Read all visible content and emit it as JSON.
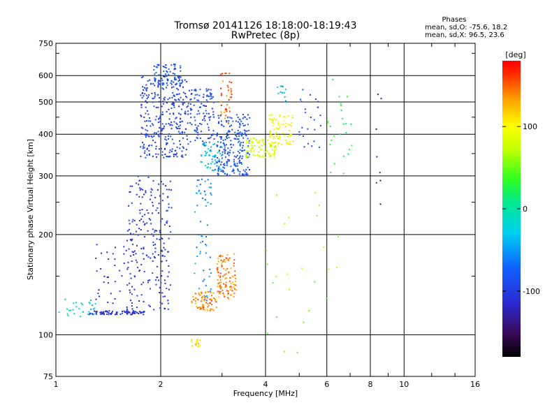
{
  "chart_data": {
    "type": "scatter",
    "title": "Tromsø 20141126 18:18:00-18:19:43",
    "subtitle": "RwPretec (8p)",
    "xlabel": "Frequency [MHz]",
    "ylabel": "Stationary phase Virtual Height [km]",
    "x_scale": "log",
    "y_scale": "log",
    "xlim": [
      1,
      16
    ],
    "ylim": [
      75,
      750
    ],
    "x_ticks": [
      "1",
      "2",
      "4",
      "6",
      "8",
      "10",
      "16"
    ],
    "x_tick_values": [
      1,
      2,
      4,
      6,
      8,
      10,
      16
    ],
    "y_ticks": [
      "75",
      "100",
      "200",
      "300",
      "400",
      "500",
      "600",
      "750"
    ],
    "y_tick_values": [
      75,
      100,
      200,
      300,
      400,
      500,
      600,
      750
    ],
    "grid": true,
    "stats": {
      "heading": "Phases",
      "line_o": "mean, sd,O: -75.6, 18.2",
      "line_x": "mean, sd,X:  96.5, 23.6"
    },
    "colorbar": {
      "label": "[deg]",
      "range": [
        -180,
        180
      ],
      "ticks": [
        "100",
        "0",
        "-100"
      ],
      "tick_values": [
        100,
        0,
        -100
      ],
      "colormap": "rainbow (black-purple-blue-cyan-green-yellow-orange-red)"
    },
    "clusters": [
      {
        "x_range": [
          1.02,
          1.3
        ],
        "y_range": [
          112,
          130
        ],
        "phase_mean": -20,
        "count": 30
      },
      {
        "x_range": [
          1.25,
          1.8
        ],
        "y_range": [
          115,
          118
        ],
        "phase_mean": -110,
        "count": 90
      },
      {
        "x_range": [
          1.3,
          1.7
        ],
        "y_range": [
          120,
          190
        ],
        "phase_mean": -110,
        "count": 40
      },
      {
        "x_range": [
          1.6,
          2.15
        ],
        "y_range": [
          118,
          300
        ],
        "phase_mean": -105,
        "count": 220
      },
      {
        "x_range": [
          1.75,
          2.4
        ],
        "y_range": [
          340,
          600
        ],
        "phase_mean": -95,
        "count": 320
      },
      {
        "x_range": [
          1.9,
          2.3
        ],
        "y_range": [
          560,
          650
        ],
        "phase_mean": -85,
        "count": 60
      },
      {
        "x_range": [
          2.4,
          2.85
        ],
        "y_range": [
          370,
          550
        ],
        "phase_mean": -90,
        "count": 110
      },
      {
        "x_range": [
          2.5,
          2.8
        ],
        "y_range": [
          125,
          300
        ],
        "phase_mean": -55,
        "count": 60
      },
      {
        "x_range": [
          2.45,
          2.9
        ],
        "y_range": [
          118,
          135
        ],
        "phase_mean": 140,
        "count": 70
      },
      {
        "x_range": [
          2.45,
          2.6
        ],
        "y_range": [
          92,
          97
        ],
        "phase_mean": 110,
        "count": 18
      },
      {
        "x_range": [
          2.9,
          3.3
        ],
        "y_range": [
          128,
          175
        ],
        "phase_mean": 140,
        "count": 110
      },
      {
        "x_range": [
          2.95,
          3.2
        ],
        "y_range": [
          430,
          610
        ],
        "phase_mean": 150,
        "count": 40
      },
      {
        "x_range": [
          2.6,
          3.0
        ],
        "y_range": [
          310,
          380
        ],
        "phase_mean": -40,
        "count": 60
      },
      {
        "x_range": [
          2.9,
          3.6
        ],
        "y_range": [
          300,
          460
        ],
        "phase_mean": -85,
        "count": 220
      },
      {
        "x_range": [
          3.5,
          4.3
        ],
        "y_range": [
          340,
          390
        ],
        "phase_mean": 80,
        "count": 90
      },
      {
        "x_range": [
          4.1,
          4.8
        ],
        "y_range": [
          370,
          460
        ],
        "phase_mean": 95,
        "count": 80
      },
      {
        "x_range": [
          4.3,
          4.6
        ],
        "y_range": [
          500,
          560
        ],
        "phase_mean": -40,
        "count": 12
      },
      {
        "x_range": [
          5.0,
          5.8
        ],
        "y_range": [
          360,
          560
        ],
        "phase_mean": -95,
        "count": 25
      },
      {
        "x_range": [
          6.0,
          7.2
        ],
        "y_range": [
          300,
          600
        ],
        "phase_mean": 20,
        "count": 25
      },
      {
        "x_range": [
          8.3,
          8.6
        ],
        "y_range": [
          230,
          560
        ],
        "phase_mean": -130,
        "count": 8
      },
      {
        "x_range": [
          4.0,
          6.5
        ],
        "y_range": [
          84,
          300
        ],
        "phase_mean": 60,
        "count": 25
      }
    ]
  }
}
